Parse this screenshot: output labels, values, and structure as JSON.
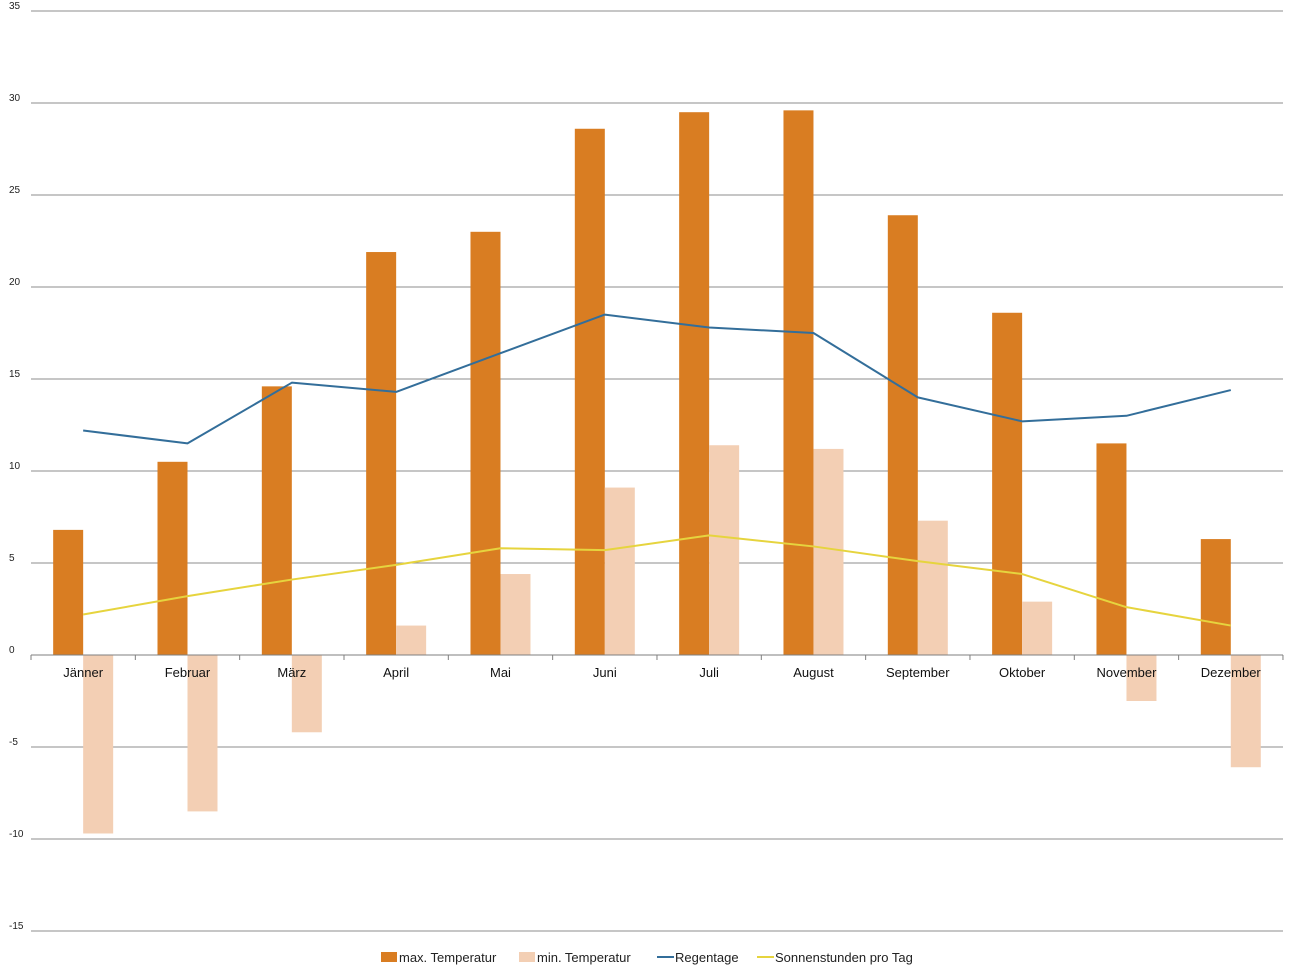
{
  "chart_data": {
    "type": "bar",
    "categories": [
      "Jänner",
      "Februar",
      "März",
      "April",
      "Mai",
      "Juni",
      "Juli",
      "August",
      "September",
      "Oktober",
      "November",
      "Dezember"
    ],
    "ylim": [
      -15,
      35
    ],
    "yticks": [
      35,
      30,
      25,
      20,
      15,
      10,
      5,
      0,
      -5,
      -10,
      -15
    ],
    "grid": true,
    "legend_position": "bottom",
    "series": [
      {
        "name": "max. Temperatur",
        "kind": "bar",
        "color": "#d97d22",
        "values": [
          6.8,
          10.5,
          14.6,
          21.9,
          23.0,
          28.6,
          29.5,
          29.6,
          23.9,
          18.6,
          11.5,
          6.3
        ]
      },
      {
        "name": "min. Temperatur",
        "kind": "bar",
        "color": "#f3cfb4",
        "values": [
          -9.7,
          -8.5,
          -4.2,
          1.6,
          4.4,
          9.1,
          11.4,
          11.2,
          7.3,
          2.9,
          -2.5,
          -6.1
        ]
      },
      {
        "name": "Regentage",
        "kind": "line",
        "color": "#336e9a",
        "values": [
          12.2,
          11.5,
          14.8,
          14.3,
          16.4,
          18.5,
          17.8,
          17.5,
          14.0,
          12.7,
          13.0,
          14.4
        ]
      },
      {
        "name": "Sonnenstunden pro Tag",
        "kind": "line",
        "color": "#e6d43e",
        "values": [
          2.2,
          3.2,
          4.1,
          4.9,
          5.8,
          5.7,
          6.5,
          5.9,
          5.1,
          4.4,
          2.6,
          1.6
        ]
      }
    ]
  }
}
